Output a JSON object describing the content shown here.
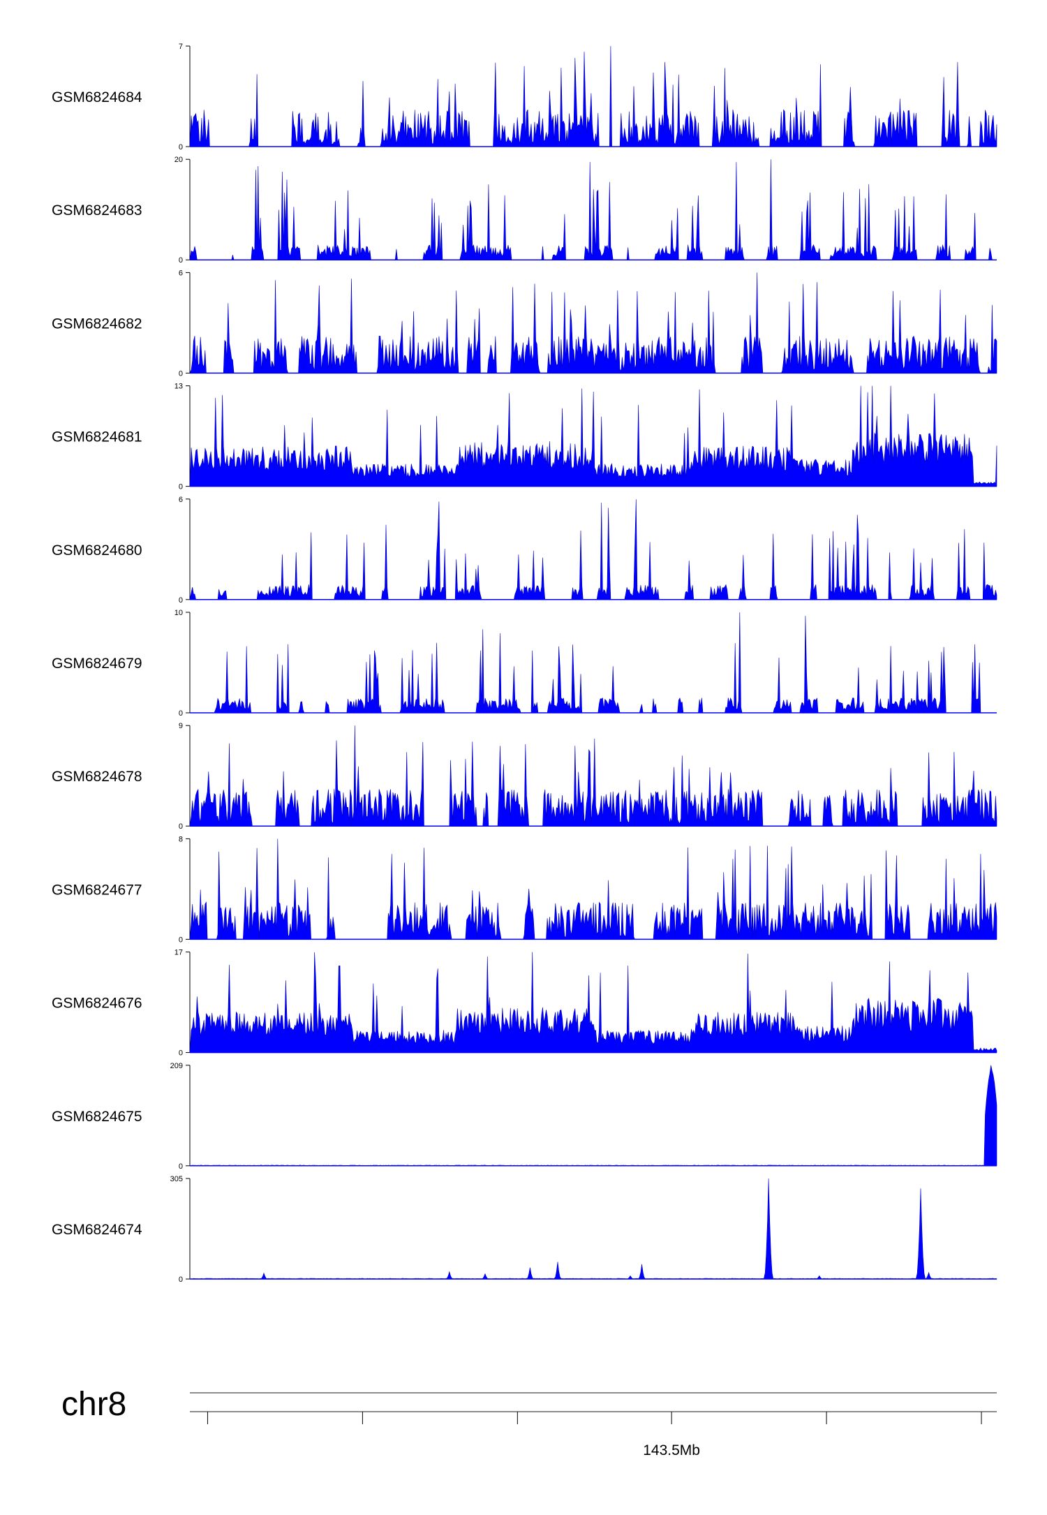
{
  "chart_data": {
    "type": "area",
    "description_free": true,
    "color": "#0000ff",
    "tracks": [
      {
        "name": "GSM6824684",
        "ymax": 7,
        "ymin": 0,
        "profile": "dense-sparse-spikes"
      },
      {
        "name": "GSM6824683",
        "ymax": 20,
        "ymin": 0,
        "profile": "sparse-spikes"
      },
      {
        "name": "GSM6824682",
        "ymax": 6,
        "ymin": 0,
        "profile": "dense-spikes"
      },
      {
        "name": "GSM6824681",
        "ymax": 13,
        "ymin": 0,
        "profile": "broad-domains"
      },
      {
        "name": "GSM6824680",
        "ymax": 6,
        "ymin": 0,
        "profile": "sparse-spikes"
      },
      {
        "name": "GSM6824679",
        "ymax": 10,
        "ymin": 0,
        "profile": "sparse-spikes"
      },
      {
        "name": "GSM6824678",
        "ymax": 9,
        "ymin": 0,
        "profile": "dense-spikes"
      },
      {
        "name": "GSM6824677",
        "ymax": 8,
        "ymin": 0,
        "profile": "dense-spikes"
      },
      {
        "name": "GSM6824676",
        "ymax": 17,
        "ymin": 0,
        "profile": "broad-domains"
      },
      {
        "name": "GSM6824675",
        "ymax": 209,
        "ymin": 0,
        "profile": "end-peak"
      },
      {
        "name": "GSM6824674",
        "ymax": 305,
        "ymin": 0,
        "profile": "few-peaks"
      }
    ],
    "tracks_peak_positions": {
      "GSM6824675": [
        {
          "x": 0.993,
          "value": 209
        }
      ],
      "GSM6824674": [
        {
          "x": 0.717,
          "value": 305
        },
        {
          "x": 0.905,
          "value": 275
        },
        {
          "x": 0.09,
          "value": 18
        },
        {
          "x": 0.32,
          "value": 22
        },
        {
          "x": 0.365,
          "value": 16
        },
        {
          "x": 0.42,
          "value": 35
        },
        {
          "x": 0.455,
          "value": 52
        },
        {
          "x": 0.56,
          "value": 45
        },
        {
          "x": 0.545,
          "value": 10
        },
        {
          "x": 0.78,
          "value": 10
        },
        {
          "x": 0.915,
          "value": 20
        }
      ]
    },
    "xaxis": {
      "chromosome": "chr8",
      "tick_labels": [
        "",
        "",
        "",
        "143.5Mb",
        "",
        ""
      ],
      "tick_fractions": [
        0.022,
        0.214,
        0.406,
        0.597,
        0.789,
        0.981
      ]
    }
  }
}
